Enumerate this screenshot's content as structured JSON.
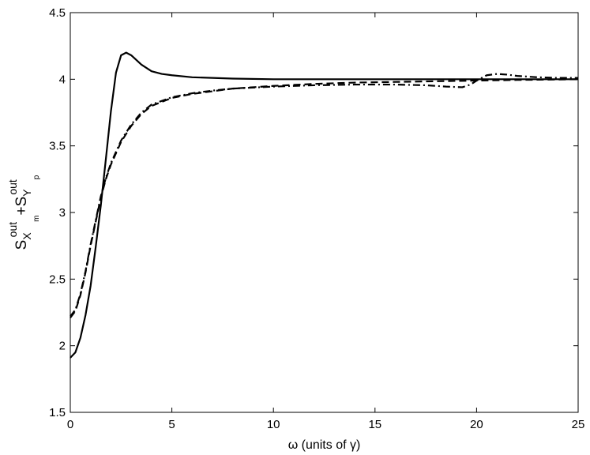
{
  "chart_data": {
    "type": "line",
    "xlabel": "ω (units of γ)",
    "ylabel": {
      "parts": [
        {
          "text": "S",
          "role": "main"
        },
        {
          "text": "X",
          "role": "main-sub"
        },
        {
          "text": "out",
          "role": "sup"
        },
        {
          "text": "m",
          "role": "sub"
        },
        {
          "text": "+S",
          "role": "main"
        },
        {
          "text": "Y",
          "role": "main-sub"
        },
        {
          "text": "out",
          "role": "sup"
        },
        {
          "text": "p",
          "role": "sub"
        }
      ]
    },
    "xlim": [
      0,
      25
    ],
    "ylim": [
      1.5,
      4.5
    ],
    "xticks": [
      0,
      5,
      10,
      15,
      20,
      25
    ],
    "xtick_labels": [
      "0",
      "5",
      "10",
      "15",
      "20",
      "25"
    ],
    "yticks": [
      1.5,
      2,
      2.5,
      3,
      3.5,
      4,
      4.5
    ],
    "ytick_labels": [
      "1.5",
      "2",
      "2.5",
      "3",
      "3.5",
      "4",
      "4.5"
    ],
    "grid": false,
    "series": [
      {
        "style": "solid",
        "color": "#000000",
        "points": [
          [
            0,
            1.91
          ],
          [
            0.25,
            1.95
          ],
          [
            0.5,
            2.06
          ],
          [
            0.75,
            2.23
          ],
          [
            1.0,
            2.45
          ],
          [
            1.25,
            2.74
          ],
          [
            1.5,
            3.05
          ],
          [
            1.75,
            3.4
          ],
          [
            2.0,
            3.76
          ],
          [
            2.25,
            4.05
          ],
          [
            2.5,
            4.18
          ],
          [
            2.75,
            4.2
          ],
          [
            3.0,
            4.18
          ],
          [
            3.5,
            4.11
          ],
          [
            4.0,
            4.06
          ],
          [
            4.5,
            4.04
          ],
          [
            5,
            4.03
          ],
          [
            6,
            4.015
          ],
          [
            7,
            4.01
          ],
          [
            8,
            4.005
          ],
          [
            10,
            4.0
          ],
          [
            15,
            4.0
          ],
          [
            20,
            4.0
          ],
          [
            25,
            4.0
          ]
        ]
      },
      {
        "style": "dashed",
        "color": "#000000",
        "points": [
          [
            0,
            2.21
          ],
          [
            0.25,
            2.26
          ],
          [
            0.5,
            2.38
          ],
          [
            0.75,
            2.55
          ],
          [
            1.0,
            2.75
          ],
          [
            1.25,
            2.93
          ],
          [
            1.5,
            3.11
          ],
          [
            1.75,
            3.25
          ],
          [
            2.0,
            3.36
          ],
          [
            2.5,
            3.53
          ],
          [
            3,
            3.65
          ],
          [
            3.5,
            3.74
          ],
          [
            4,
            3.8
          ],
          [
            5,
            3.86
          ],
          [
            6,
            3.89
          ],
          [
            7,
            3.91
          ],
          [
            8,
            3.93
          ],
          [
            10,
            3.95
          ],
          [
            12,
            3.965
          ],
          [
            14,
            3.975
          ],
          [
            16,
            3.98
          ],
          [
            18,
            3.985
          ],
          [
            20,
            3.99
          ],
          [
            22,
            3.995
          ],
          [
            25,
            4.0
          ]
        ]
      },
      {
        "style": "dashdot",
        "color": "#000000",
        "points": [
          [
            0,
            2.22
          ],
          [
            0.25,
            2.27
          ],
          [
            0.5,
            2.39
          ],
          [
            0.75,
            2.56
          ],
          [
            1.0,
            2.76
          ],
          [
            1.25,
            2.94
          ],
          [
            1.5,
            3.12
          ],
          [
            1.75,
            3.26
          ],
          [
            2.0,
            3.37
          ],
          [
            2.5,
            3.54
          ],
          [
            3,
            3.66
          ],
          [
            3.5,
            3.75
          ],
          [
            4,
            3.81
          ],
          [
            5,
            3.865
          ],
          [
            6,
            3.895
          ],
          [
            7,
            3.915
          ],
          [
            8,
            3.93
          ],
          [
            10,
            3.945
          ],
          [
            12,
            3.955
          ],
          [
            14,
            3.96
          ],
          [
            16,
            3.96
          ],
          [
            17.5,
            3.955
          ],
          [
            18.5,
            3.945
          ],
          [
            19.3,
            3.94
          ],
          [
            19.7,
            3.96
          ],
          [
            20,
            3.99
          ],
          [
            20.5,
            4.03
          ],
          [
            21,
            4.04
          ],
          [
            21.5,
            4.035
          ],
          [
            22,
            4.025
          ],
          [
            23,
            4.015
          ],
          [
            24,
            4.01
          ],
          [
            25,
            4.01
          ]
        ]
      }
    ]
  }
}
